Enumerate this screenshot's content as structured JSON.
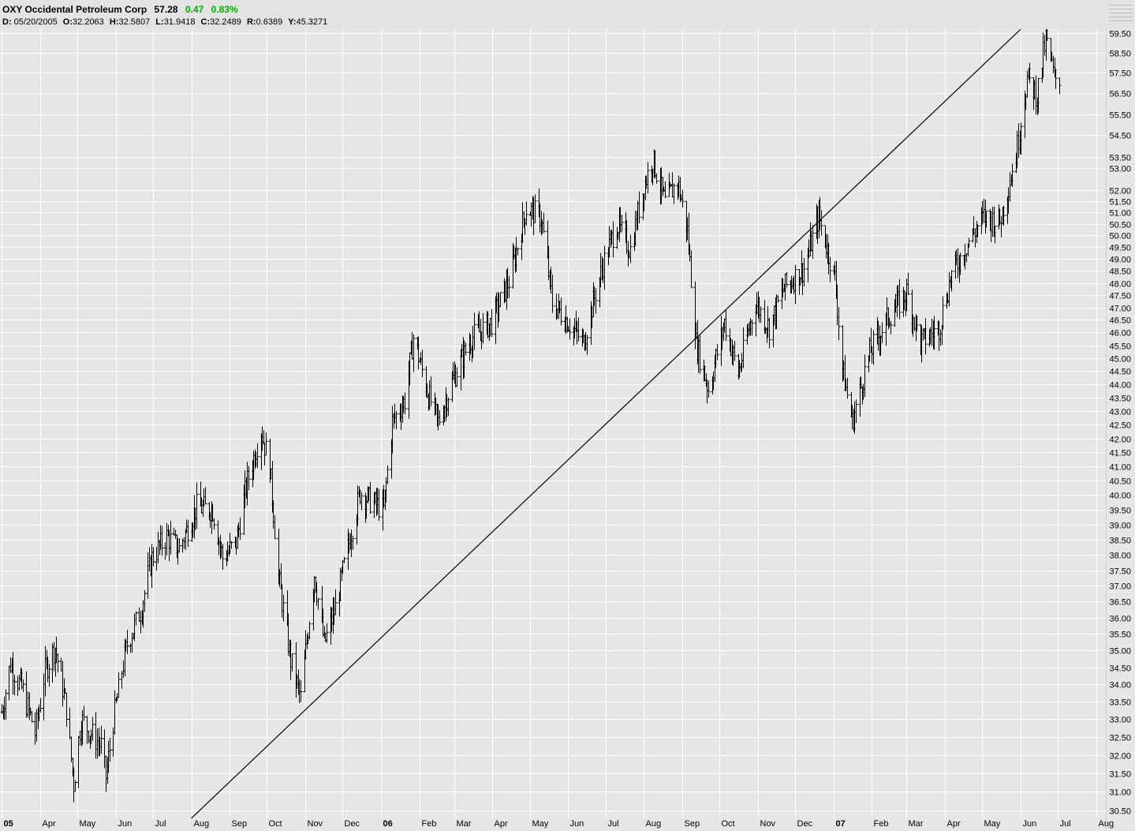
{
  "header": {
    "symbol_name": "OXY Occidental Petroleum Corp",
    "last": "57.28",
    "change": "0.47",
    "change_pct": "0.83%",
    "change_color": "#00b000",
    "details": [
      {
        "key": "D:",
        "value": "05/20/2005"
      },
      {
        "key": "O:",
        "value": "32.2063"
      },
      {
        "key": "H:",
        "value": "32.5807"
      },
      {
        "key": "L:",
        "value": "31.9418"
      },
      {
        "key": "C:",
        "value": "32.2489"
      },
      {
        "key": "R:",
        "value": "0.6389"
      },
      {
        "key": "Y:",
        "value": "45.3271"
      }
    ]
  },
  "chart_data": {
    "type": "ohlc-bar",
    "title": "OXY Occidental Petroleum Corp",
    "y_scale": "log",
    "ylim": [
      30.3,
      59.7
    ],
    "y_ticks": [
      "59.50",
      "58.50",
      "57.50",
      "56.50",
      "55.50",
      "54.50",
      "53.50",
      "53.00",
      "52.00",
      "51.50",
      "51.00",
      "50.50",
      "50.00",
      "49.50",
      "49.00",
      "48.50",
      "48.00",
      "47.50",
      "47.00",
      "46.50",
      "46.00",
      "45.50",
      "45.00",
      "44.50",
      "44.00",
      "43.50",
      "43.00",
      "42.50",
      "42.00",
      "41.50",
      "41.00",
      "40.50",
      "40.00",
      "39.50",
      "39.00",
      "38.50",
      "38.00",
      "37.50",
      "37.00",
      "36.50",
      "36.00",
      "35.50",
      "35.00",
      "34.50",
      "34.00",
      "33.50",
      "33.00",
      "32.50",
      "32.00",
      "31.50",
      "31.00",
      "30.50"
    ],
    "x_labels": [
      {
        "label": "05",
        "date": "2005-03-01",
        "bold": true
      },
      {
        "label": "Apr",
        "date": "2005-04-01"
      },
      {
        "label": "May",
        "date": "2005-05-01"
      },
      {
        "label": "Jun",
        "date": "2005-06-01"
      },
      {
        "label": "Jul",
        "date": "2005-07-01"
      },
      {
        "label": "Aug",
        "date": "2005-08-01"
      },
      {
        "label": "Sep",
        "date": "2005-09-01"
      },
      {
        "label": "Oct",
        "date": "2005-10-01"
      },
      {
        "label": "Nov",
        "date": "2005-11-01"
      },
      {
        "label": "Dec",
        "date": "2005-12-01"
      },
      {
        "label": "06",
        "date": "2006-01-01",
        "bold": true
      },
      {
        "label": "Feb",
        "date": "2006-02-01"
      },
      {
        "label": "Mar",
        "date": "2006-03-01"
      },
      {
        "label": "Apr",
        "date": "2006-04-01"
      },
      {
        "label": "May",
        "date": "2006-05-01"
      },
      {
        "label": "Jun",
        "date": "2006-06-01"
      },
      {
        "label": "Jul",
        "date": "2006-07-01"
      },
      {
        "label": "Aug",
        "date": "2006-08-01"
      },
      {
        "label": "Sep",
        "date": "2006-09-01"
      },
      {
        "label": "Oct",
        "date": "2006-10-01"
      },
      {
        "label": "Nov",
        "date": "2006-11-01"
      },
      {
        "label": "Dec",
        "date": "2006-12-01"
      },
      {
        "label": "07",
        "date": "2007-01-01",
        "bold": true
      },
      {
        "label": "Feb",
        "date": "2007-02-01"
      },
      {
        "label": "Mar",
        "date": "2007-03-01"
      },
      {
        "label": "Apr",
        "date": "2007-04-01"
      },
      {
        "label": "May",
        "date": "2007-05-01"
      },
      {
        "label": "Jun",
        "date": "2007-06-01"
      },
      {
        "label": "Jul",
        "date": "2007-07-01"
      },
      {
        "label": "Aug",
        "date": "2007-08-01"
      }
    ],
    "price_path": [
      {
        "date": "2005-03-01",
        "close": 33.2
      },
      {
        "date": "2005-03-08",
        "close": 34.6
      },
      {
        "date": "2005-03-18",
        "close": 33.8
      },
      {
        "date": "2005-03-28",
        "close": 32.6
      },
      {
        "date": "2005-04-05",
        "close": 34.4
      },
      {
        "date": "2005-04-13",
        "close": 35.1
      },
      {
        "date": "2005-04-22",
        "close": 33.3
      },
      {
        "date": "2005-04-28",
        "close": 31.2
      },
      {
        "date": "2005-05-04",
        "close": 33.0
      },
      {
        "date": "2005-05-12",
        "close": 32.6
      },
      {
        "date": "2005-05-20",
        "close": 32.25
      },
      {
        "date": "2005-05-24",
        "close": 31.4
      },
      {
        "date": "2005-05-31",
        "close": 33.2
      },
      {
        "date": "2005-06-10",
        "close": 35.2
      },
      {
        "date": "2005-06-21",
        "close": 36.2
      },
      {
        "date": "2005-06-30",
        "close": 37.9
      },
      {
        "date": "2005-07-12",
        "close": 38.6
      },
      {
        "date": "2005-07-22",
        "close": 38.2
      },
      {
        "date": "2005-08-05",
        "close": 39.6
      },
      {
        "date": "2005-08-18",
        "close": 39.5
      },
      {
        "date": "2005-08-26",
        "close": 37.9
      },
      {
        "date": "2005-09-06",
        "close": 38.4
      },
      {
        "date": "2005-09-14",
        "close": 40.3
      },
      {
        "date": "2005-09-26",
        "close": 42.3
      },
      {
        "date": "2005-10-03",
        "close": 41.0
      },
      {
        "date": "2005-10-10",
        "close": 37.3
      },
      {
        "date": "2005-10-20",
        "close": 34.7
      },
      {
        "date": "2005-10-28",
        "close": 33.6
      },
      {
        "date": "2005-11-08",
        "close": 37.4
      },
      {
        "date": "2005-11-16",
        "close": 35.2
      },
      {
        "date": "2005-11-25",
        "close": 36.3
      },
      {
        "date": "2005-12-05",
        "close": 38.2
      },
      {
        "date": "2005-12-15",
        "close": 40.1
      },
      {
        "date": "2005-12-23",
        "close": 39.8
      },
      {
        "date": "2006-01-03",
        "close": 39.5
      },
      {
        "date": "2006-01-10",
        "close": 42.6
      },
      {
        "date": "2006-01-20",
        "close": 43.4
      },
      {
        "date": "2006-01-27",
        "close": 45.8
      },
      {
        "date": "2006-02-08",
        "close": 43.6
      },
      {
        "date": "2006-02-16",
        "close": 42.6
      },
      {
        "date": "2006-02-28",
        "close": 44.2
      },
      {
        "date": "2006-03-15",
        "close": 45.8
      },
      {
        "date": "2006-03-31",
        "close": 46.4
      },
      {
        "date": "2006-04-15",
        "close": 48.2
      },
      {
        "date": "2006-04-28",
        "close": 51.2
      },
      {
        "date": "2006-05-10",
        "close": 50.8
      },
      {
        "date": "2006-05-19",
        "close": 47.2
      },
      {
        "date": "2006-06-01",
        "close": 46.4
      },
      {
        "date": "2006-06-13",
        "close": 45.6
      },
      {
        "date": "2006-06-28",
        "close": 48.6
      },
      {
        "date": "2006-07-10",
        "close": 50.5
      },
      {
        "date": "2006-07-21",
        "close": 49.4
      },
      {
        "date": "2006-08-01",
        "close": 52.2
      },
      {
        "date": "2006-08-08",
        "close": 53.4
      },
      {
        "date": "2006-08-18",
        "close": 51.4
      },
      {
        "date": "2006-08-28",
        "close": 52.4
      },
      {
        "date": "2006-09-05",
        "close": 50.2
      },
      {
        "date": "2006-09-12",
        "close": 45.6
      },
      {
        "date": "2006-09-22",
        "close": 43.8
      },
      {
        "date": "2006-10-05",
        "close": 46.4
      },
      {
        "date": "2006-10-16",
        "close": 44.4
      },
      {
        "date": "2006-10-30",
        "close": 47.2
      },
      {
        "date": "2006-11-10",
        "close": 46.2
      },
      {
        "date": "2006-11-22",
        "close": 47.8
      },
      {
        "date": "2006-12-08",
        "close": 48.6
      },
      {
        "date": "2006-12-20",
        "close": 50.8
      },
      {
        "date": "2007-01-02",
        "close": 48.2
      },
      {
        "date": "2007-01-08",
        "close": 44.6
      },
      {
        "date": "2007-01-16",
        "close": 42.6
      },
      {
        "date": "2007-01-30",
        "close": 45.2
      },
      {
        "date": "2007-02-14",
        "close": 46.6
      },
      {
        "date": "2007-03-01",
        "close": 47.6
      },
      {
        "date": "2007-03-12",
        "close": 45.6
      },
      {
        "date": "2007-03-27",
        "close": 46.2
      },
      {
        "date": "2007-04-05",
        "close": 48.2
      },
      {
        "date": "2007-04-18",
        "close": 49.6
      },
      {
        "date": "2007-05-02",
        "close": 50.8
      },
      {
        "date": "2007-05-15",
        "close": 50.6
      },
      {
        "date": "2007-05-28",
        "close": 53.6
      },
      {
        "date": "2007-06-06",
        "close": 57.2
      },
      {
        "date": "2007-06-14",
        "close": 56.4
      },
      {
        "date": "2007-06-21",
        "close": 59.2
      },
      {
        "date": "2007-06-28",
        "close": 57.2
      },
      {
        "date": "2007-07-02",
        "close": 57.28
      }
    ],
    "trendlines": [
      {
        "from": {
          "date": "2005-08-01",
          "price": 30.3
        },
        "to": {
          "date": "2007-06-01",
          "price": 59.7
        }
      }
    ],
    "grid": true,
    "bar_color": "#000000",
    "background": "#e6e6e6",
    "grid_color": "#ffffff"
  }
}
